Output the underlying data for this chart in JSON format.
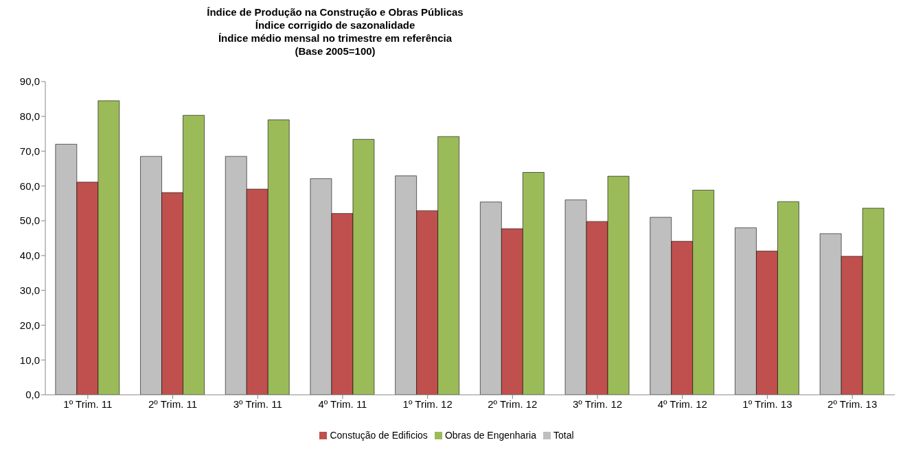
{
  "chart_data": {
    "type": "bar",
    "title": "Índice de Produção na Construção e Obras Públicas",
    "subtitle": "Índice corrigido de sazonalidade\nÍndice médio mensal no trimestre em referência\n(Base 2005=100)",
    "categories": [
      "1º Trim. 11",
      "2º Trim. 11",
      "3º Trim. 11",
      "4º Trim. 11",
      "1º Trim. 12",
      "2º Trim. 12",
      "3º Trim. 12",
      "4º Trim. 12",
      "1º Trim. 13",
      "2º Trim. 13"
    ],
    "series": [
      {
        "name": "Total",
        "color": "#bfbfbf",
        "values": [
          72.0,
          68.5,
          68.5,
          62.1,
          62.9,
          55.4,
          56.0,
          51.0,
          48.0,
          46.3
        ]
      },
      {
        "name": "Constução de Edificios",
        "color": "#c0504d",
        "values": [
          61.1,
          58.1,
          59.1,
          52.1,
          52.9,
          47.7,
          49.8,
          44.1,
          41.3,
          39.8
        ]
      },
      {
        "name": "Obras de Engenharia",
        "color": "#9bbb59",
        "values": [
          84.5,
          80.3,
          79.0,
          73.4,
          74.2,
          63.9,
          62.8,
          58.8,
          55.5,
          53.6
        ]
      }
    ],
    "ylim": [
      0,
      90
    ],
    "yticks": [
      {
        "value": 0,
        "label": "0,0"
      },
      {
        "value": 10,
        "label": "10,0"
      },
      {
        "value": 20,
        "label": "20,0"
      },
      {
        "value": 30,
        "label": "30,0"
      },
      {
        "value": 40,
        "label": "40,0"
      },
      {
        "value": 50,
        "label": "50,0"
      },
      {
        "value": 60,
        "label": "60,0"
      },
      {
        "value": 70,
        "label": "70,0"
      },
      {
        "value": 80,
        "label": "80,0"
      },
      {
        "value": 90,
        "label": "90,0"
      }
    ],
    "grid": false,
    "legend": "bottom"
  }
}
